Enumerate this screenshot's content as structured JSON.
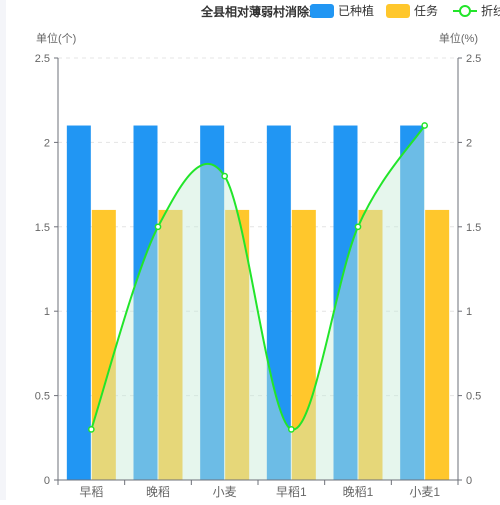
{
  "chart_data": {
    "type": "bar",
    "title": "全县相对薄弱村消除进程",
    "categories": [
      "早稻",
      "晚稻",
      "小麦",
      "早稻1",
      "晚稻1",
      "小麦1"
    ],
    "series": [
      {
        "name": "已种植",
        "type": "bar",
        "color": "#2196f3",
        "values": [
          2.1,
          2.1,
          2.1,
          2.1,
          2.1,
          2.1
        ]
      },
      {
        "name": "任务",
        "type": "bar",
        "color": "#ffc72c",
        "values": [
          1.6,
          1.6,
          1.6,
          1.6,
          1.6,
          1.6
        ]
      },
      {
        "name": "折线",
        "type": "line",
        "smooth": true,
        "area": true,
        "color": "#22e52a",
        "values": [
          0.3,
          1.5,
          1.8,
          0.3,
          1.5,
          2.1
        ]
      }
    ],
    "legend_labels": [
      "已种植",
      "任务",
      "折线"
    ],
    "ylabel_left": "单位(个)",
    "ylabel_right": "单位(%)",
    "yticks_left": [
      "0",
      "0.5",
      "1",
      "1.5",
      "2",
      "2.5"
    ],
    "yticks_right": [
      "0",
      "0.5",
      "1",
      "1.5",
      "2",
      "2.5"
    ],
    "ylim": [
      0,
      2.5
    ],
    "grid": true,
    "legend_position": "top-right"
  }
}
